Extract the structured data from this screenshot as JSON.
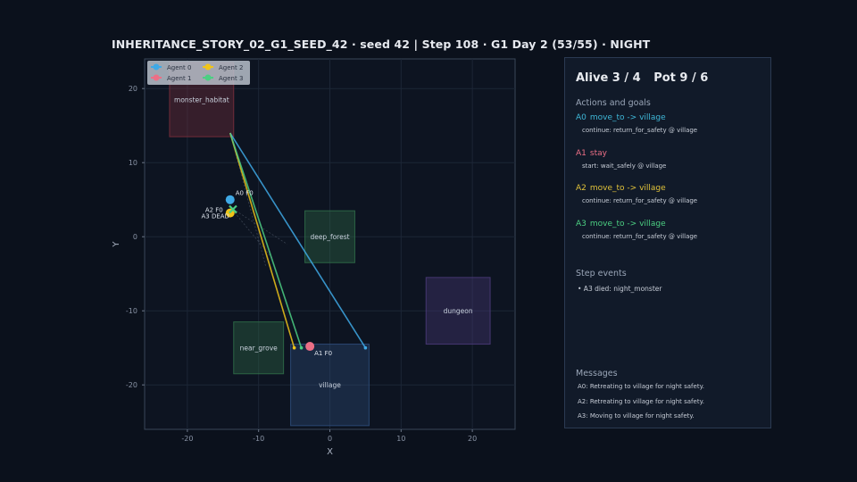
{
  "header": {
    "title": "INHERITANCE_STORY_02_G1_SEED_42 · seed 42 | Step 108 · G1 Day 2 (53/55) · NIGHT"
  },
  "chart_data": {
    "type": "scatter",
    "xlabel": "X",
    "ylabel": "Y",
    "xlim": [
      -26,
      26
    ],
    "ylim": [
      -26,
      24
    ],
    "xticks": [
      -20,
      -10,
      0,
      10,
      20
    ],
    "yticks": [
      -20,
      -10,
      0,
      10,
      20
    ],
    "grid": true,
    "legend_position": "top-left",
    "zones": [
      {
        "name": "monster_habitat",
        "x0": -22.5,
        "x1": -13.5,
        "y0": 13.5,
        "y1": 23.5,
        "color": "#7a2f3c"
      },
      {
        "name": "deep_forest",
        "x0": -3.5,
        "x1": 3.5,
        "y0": -3.5,
        "y1": 3.5,
        "color": "#2f6b48"
      },
      {
        "name": "near_grove",
        "x0": -13.5,
        "x1": -6.5,
        "y0": -18.5,
        "y1": -11.5,
        "color": "#2f6b48"
      },
      {
        "name": "village",
        "x0": -5.5,
        "x1": 5.5,
        "y0": -25.5,
        "y1": -14.5,
        "color": "#2d4d7a"
      },
      {
        "name": "dungeon",
        "x0": 13.5,
        "x1": 22.5,
        "y0": -14.5,
        "y1": -5.5,
        "color": "#4a3a78"
      }
    ],
    "series": [
      {
        "name": "Agent 0",
        "color": "#3fa9e6",
        "position": [
          -14,
          5
        ],
        "label": "A0 F0",
        "path": [
          [
            -14,
            14
          ],
          [
            5,
            -15
          ]
        ]
      },
      {
        "name": "Agent 1",
        "color": "#ec6f86",
        "position": [
          -2.8,
          -14.8
        ],
        "label": "A1 F0",
        "path": []
      },
      {
        "name": "Agent 2",
        "color": "#f0c419",
        "position": [
          -14,
          3.2
        ],
        "label": "A2 F0",
        "path": [
          [
            -14,
            14
          ],
          [
            -5,
            -15
          ]
        ]
      },
      {
        "name": "Agent 3",
        "color": "#4ccf82",
        "position": [
          -13.6,
          3.7
        ],
        "label": "A3 DEAD",
        "path": [
          [
            -14,
            14
          ],
          [
            -4,
            -15
          ]
        ]
      }
    ]
  },
  "panel": {
    "alive_label": "Alive 3 / 4",
    "pot_label": "Pot 9 / 6",
    "actions_heading": "Actions and goals",
    "agents": [
      {
        "id": "A0",
        "action": "move_to -> village",
        "goal": "continue: return_for_safety @ village",
        "color": "#3fb8d8"
      },
      {
        "id": "A1",
        "action": "stay",
        "goal": "start: wait_safely @ village",
        "color": "#ec6f86"
      },
      {
        "id": "A2",
        "action": "move_to -> village",
        "goal": "continue: return_for_safety @ village",
        "color": "#e0c23a"
      },
      {
        "id": "A3",
        "action": "move_to -> village",
        "goal": "continue: return_for_safety @ village",
        "color": "#4ccf82"
      }
    ],
    "events_heading": "Step events",
    "events": [
      "• A3 died: night_monster"
    ],
    "messages_heading": "Messages",
    "messages": [
      "A0: Retreating to village for night safety.",
      "A2: Retreating to village for night safety.",
      "A3: Moving to village for night safety."
    ]
  }
}
